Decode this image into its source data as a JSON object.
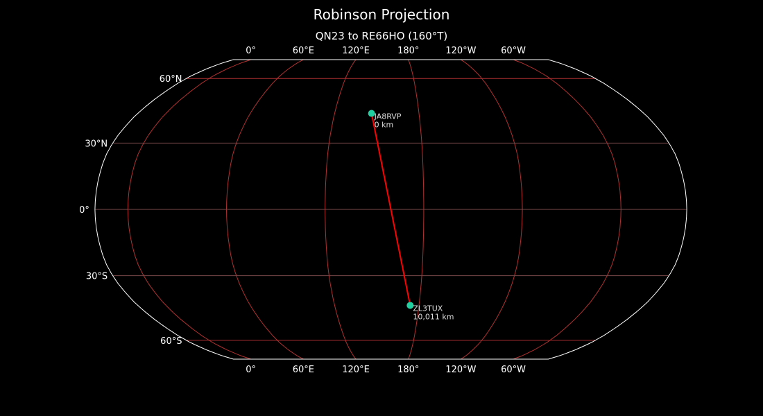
{
  "title": "Robinson Projection",
  "subtitle": "QN23 to RE66HO (160°T)",
  "map": {
    "projection": "Robinson",
    "central_longitude": 160,
    "background": "#000000",
    "frame_color": "#ffffff",
    "gridline_color": "#b03030",
    "coastline_color": "#808080",
    "longitude_labels": [
      "0°",
      "60°E",
      "120°E",
      "180°",
      "120°W",
      "60°W"
    ],
    "longitude_values": [
      0,
      60,
      120,
      180,
      240,
      300
    ],
    "latitude_labels": [
      "60°N",
      "30°N",
      "0°",
      "30°S",
      "60°S"
    ],
    "latitude_values": [
      60,
      30,
      0,
      -30,
      -60
    ]
  },
  "path": {
    "color": "#ff0000",
    "marker_color": "#20d0a0",
    "points": [
      {
        "call": "JA8RVP",
        "distance": "0 km",
        "lat": 43.5,
        "lon": 147
      },
      {
        "call": "ZL3TUX",
        "distance": "10,011 km",
        "lat": -43.5,
        "lon": 173
      }
    ]
  }
}
